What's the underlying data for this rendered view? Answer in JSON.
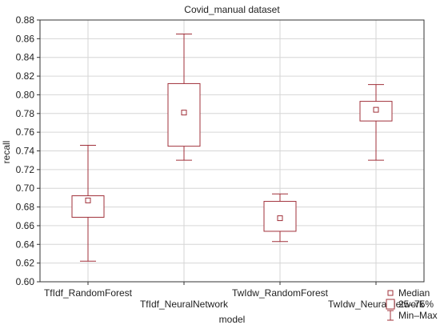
{
  "chart_data": {
    "type": "box",
    "title": "Covid_manual dataset",
    "xlabel": "model",
    "ylabel": "recall",
    "ylim": [
      0.6,
      0.88
    ],
    "yticks": [
      "0.60",
      "0.62",
      "0.64",
      "0.66",
      "0.68",
      "0.70",
      "0.72",
      "0.74",
      "0.76",
      "0.78",
      "0.80",
      "0.82",
      "0.84",
      "0.86",
      "0.88"
    ],
    "grid": true,
    "legend_position": "bottom-right",
    "categories": [
      "TfIdf_RandomForest",
      "TfIdf_NeuralNetwork",
      "TwIdw_RandomForest",
      "TwIdw_NeuralNetwork"
    ],
    "boxes": [
      {
        "name": "TfIdf_RandomForest",
        "min": 0.622,
        "q1": 0.669,
        "median": 0.687,
        "q3": 0.692,
        "max": 0.746
      },
      {
        "name": "TfIdf_NeuralNetwork",
        "min": 0.73,
        "q1": 0.745,
        "median": 0.781,
        "q3": 0.812,
        "max": 0.865
      },
      {
        "name": "TwIdw_RandomForest",
        "min": 0.643,
        "q1": 0.654,
        "median": 0.668,
        "q3": 0.686,
        "max": 0.694
      },
      {
        "name": "TwIdw_NeuralNetwork",
        "min": 0.73,
        "q1": 0.772,
        "median": 0.784,
        "q3": 0.793,
        "max": 0.811
      }
    ],
    "legend": [
      {
        "symbol": "median-marker",
        "label": "Median"
      },
      {
        "symbol": "box",
        "label": "25–75%"
      },
      {
        "symbol": "whisker",
        "label": "Min–Max"
      }
    ],
    "colors": {
      "series": "#a0303a",
      "axis": "#333333",
      "grid": "#d6d6d6"
    }
  }
}
